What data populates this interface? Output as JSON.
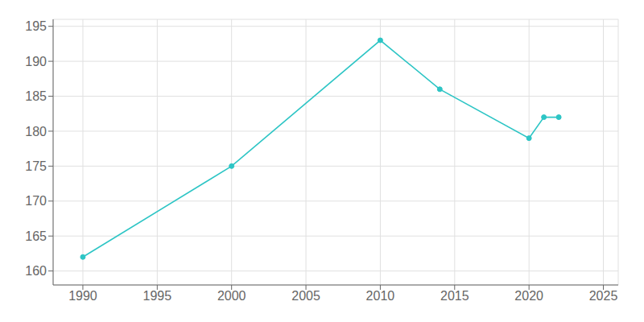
{
  "chart_data": {
    "type": "line",
    "x": [
      1990,
      2000,
      2010,
      2014,
      2020,
      2021,
      2022
    ],
    "values": [
      162,
      175,
      193,
      186,
      179,
      182,
      182
    ],
    "color": "#2DC5C5",
    "marker": "o",
    "xlim": [
      1988,
      2026
    ],
    "ylim": [
      158,
      196
    ],
    "xticks": [
      1990,
      1995,
      2000,
      2005,
      2010,
      2015,
      2020,
      2025
    ],
    "yticks": [
      160,
      165,
      170,
      175,
      180,
      185,
      190,
      195
    ],
    "grid": true
  }
}
